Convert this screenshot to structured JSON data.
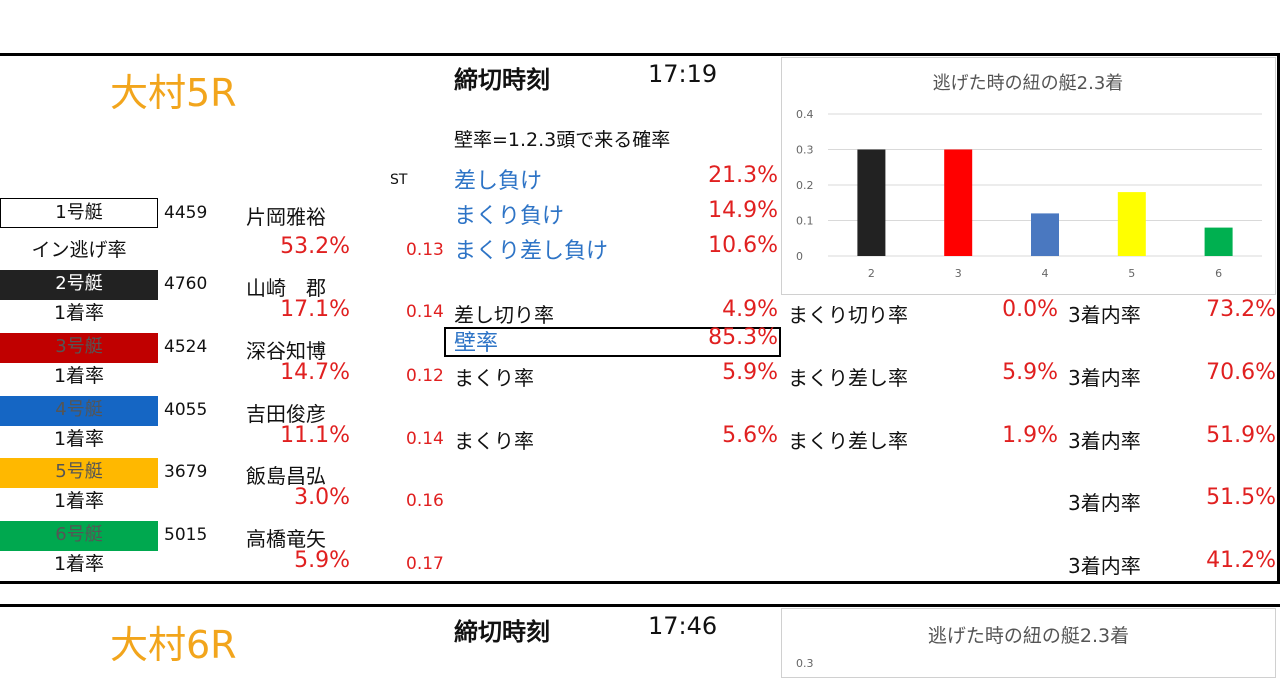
{
  "race1": {
    "venue": "大村5R",
    "deadline_label": "締切時刻",
    "deadline_time": "17:19",
    "wall_definition": "壁率=1.2.3頭で来る確率",
    "st_label": "ST",
    "boats": [
      {
        "label": "1号艇",
        "id": "4459",
        "name": "片岡雅裕",
        "rate_label": "イン逃げ率",
        "rate": "53.2%",
        "st": "0.13"
      },
      {
        "label": "2号艇",
        "id": "4760",
        "name": "山崎　郡",
        "rate_label": "1着率",
        "rate": "17.1%",
        "st": "0.14"
      },
      {
        "label": "3号艇",
        "id": "4524",
        "name": "深谷知博",
        "rate_label": "1着率",
        "rate": "14.7%",
        "st": "0.12"
      },
      {
        "label": "4号艇",
        "id": "4055",
        "name": "吉田俊彦",
        "rate_label": "1着率",
        "rate": "11.1%",
        "st": "0.14"
      },
      {
        "label": "5号艇",
        "id": "3679",
        "name": "飯島昌弘",
        "rate_label": "1着率",
        "rate": "3.0%",
        "st": "0.16"
      },
      {
        "label": "6号艇",
        "id": "5015",
        "name": "高橋竜矢",
        "rate_label": "1着率",
        "rate": "5.9%",
        "st": "0.17"
      }
    ],
    "loss_rates": [
      {
        "label": "差し負け",
        "value": "21.3%"
      },
      {
        "label": "まくり負け",
        "value": "14.9%"
      },
      {
        "label": "まくり差し負け",
        "value": "10.6%"
      }
    ],
    "boat2_stats": {
      "a_label": "差し切り率",
      "a_value": "4.9%",
      "b_label": "まくり切り率",
      "b_value": "0.0%",
      "c_label": "3着内率",
      "c_value": "73.2%"
    },
    "wall": {
      "label": "壁率",
      "value": "85.3%"
    },
    "boat3_stats": {
      "a_label": "まくり率",
      "a_value": "5.9%",
      "b_label": "まくり差し率",
      "b_value": "5.9%",
      "c_label": "3着内率",
      "c_value": "70.6%"
    },
    "boat4_stats": {
      "a_label": "まくり率",
      "a_value": "5.6%",
      "b_label": "まくり差し率",
      "b_value": "1.9%",
      "c_label": "3着内率",
      "c_value": "51.9%"
    },
    "boat5_stats": {
      "c_label": "3着内率",
      "c_value": "51.5%"
    },
    "boat6_stats": {
      "c_label": "3着内率",
      "c_value": "41.2%"
    }
  },
  "race2": {
    "venue": "大村6R",
    "deadline_label": "締切時刻",
    "deadline_time": "17:46",
    "chart_title": "逃げた時の紐の艇2.3着",
    "y_top_tick": "0.3"
  },
  "chart_data": [
    {
      "type": "bar",
      "title": "逃げた時の紐の艇2.3着",
      "categories": [
        "2",
        "3",
        "4",
        "5",
        "6"
      ],
      "values": [
        0.3,
        0.3,
        0.12,
        0.18,
        0.08
      ],
      "colors": [
        "#222222",
        "#ff0000",
        "#4a78c0",
        "#ffff00",
        "#00b050"
      ],
      "ylim": [
        0,
        0.4
      ],
      "yticks": [
        "0",
        "0.1",
        "0.2",
        "0.3",
        "0.4"
      ],
      "grid": true,
      "xlabel": "",
      "ylabel": ""
    }
  ]
}
